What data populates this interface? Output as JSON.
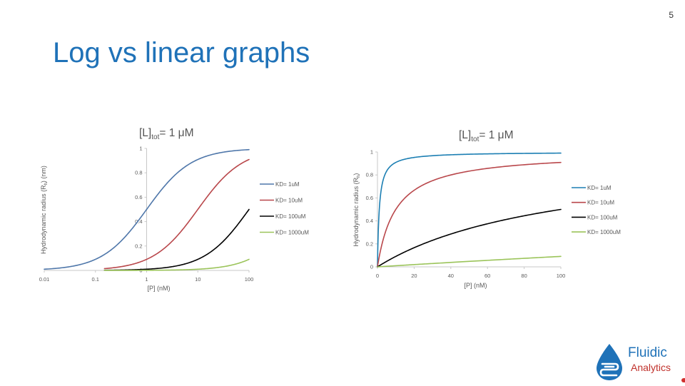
{
  "slide": {
    "number": "5",
    "title": "Log vs linear graphs",
    "logo": {
      "line1": "Fluidic",
      "line2": "Analytics"
    },
    "colors": {
      "title": "#1f72b8",
      "logo_blue": "#1f72b8",
      "logo_red": "#c0312b"
    }
  },
  "chart_data": [
    {
      "type": "line",
      "title": "[L]",
      "title_sub": "tot",
      "title_rest": "= 1 μM",
      "xlabel": "[P] (nM)",
      "ylabel": "Hydrodynamic radius (R",
      "ylabel_sub": "h",
      "ylabel_rest": ") (nm)",
      "xscale": "log",
      "xlim": [
        0.01,
        100
      ],
      "ylim": [
        0,
        1
      ],
      "xticks": [
        "0.01",
        "0.1",
        "1",
        "10",
        "100"
      ],
      "yticks": [
        "0",
        "0.2",
        "0.4",
        "0.6",
        "0.8",
        "1"
      ],
      "legend_position": "right",
      "series": [
        {
          "name": "KD= 1uM",
          "color": "#4f77aa",
          "kd": 1,
          "x": [
            0.01,
            0.02,
            0.05,
            0.1,
            0.2,
            0.5,
            1,
            2,
            5,
            10,
            20,
            50,
            100
          ],
          "y": [
            0.01,
            0.02,
            0.048,
            0.091,
            0.167,
            0.333,
            0.5,
            0.667,
            0.833,
            0.909,
            0.952,
            0.98,
            0.99
          ]
        },
        {
          "name": "KD= 10uM",
          "color": "#b9474b",
          "kd": 10,
          "x": [
            0.15,
            0.2,
            0.5,
            1,
            2,
            5,
            10,
            20,
            50,
            100
          ],
          "y": [
            0.015,
            0.02,
            0.048,
            0.091,
            0.167,
            0.333,
            0.5,
            0.667,
            0.833,
            0.909
          ]
        },
        {
          "name": "KD= 100uM",
          "color": "#000000",
          "kd": 100,
          "x": [
            0.15,
            0.2,
            0.5,
            1,
            2,
            5,
            10,
            20,
            50,
            100
          ],
          "y": [
            0.0015,
            0.002,
            0.005,
            0.01,
            0.02,
            0.048,
            0.091,
            0.167,
            0.333,
            0.5
          ]
        },
        {
          "name": "KD= 1000uM",
          "color": "#9bc45a",
          "kd": 1000,
          "x": [
            0.15,
            0.2,
            0.5,
            1,
            2,
            5,
            10,
            20,
            50,
            100
          ],
          "y": [
            0.0002,
            0.0002,
            0.0005,
            0.001,
            0.002,
            0.005,
            0.01,
            0.02,
            0.048,
            0.091
          ]
        }
      ]
    },
    {
      "type": "line",
      "title": "[L]",
      "title_sub": "tot",
      "title_rest": "= 1 μM",
      "xlabel": "[P] (nM)",
      "ylabel": "Hydrodynamic radius (R",
      "ylabel_sub": "h",
      "ylabel_rest": ")",
      "xscale": "linear",
      "xlim": [
        0,
        100
      ],
      "ylim": [
        0,
        1
      ],
      "xticks": [
        "0",
        "20",
        "40",
        "60",
        "80",
        "100"
      ],
      "yticks": [
        "0",
        "0.2",
        "0.4",
        "0.6",
        "0.8",
        "1"
      ],
      "legend_position": "right",
      "series": [
        {
          "name": "KD= 1uM",
          "color": "#1c7fb3",
          "kd": 1,
          "x": [
            0,
            0.5,
            1,
            2,
            3,
            5,
            10,
            20,
            40,
            60,
            80,
            100
          ],
          "y": [
            0,
            0.333,
            0.5,
            0.667,
            0.75,
            0.833,
            0.909,
            0.952,
            0.976,
            0.984,
            0.988,
            0.99
          ]
        },
        {
          "name": "KD= 10uM",
          "color": "#b9474b",
          "kd": 10,
          "x": [
            0,
            1,
            2,
            5,
            10,
            20,
            30,
            40,
            60,
            80,
            100
          ],
          "y": [
            0,
            0.091,
            0.167,
            0.333,
            0.5,
            0.667,
            0.75,
            0.8,
            0.857,
            0.889,
            0.909
          ]
        },
        {
          "name": "KD= 100uM",
          "color": "#000000",
          "kd": 100,
          "x": [
            0,
            5,
            10,
            20,
            30,
            40,
            50,
            60,
            70,
            80,
            90,
            100
          ],
          "y": [
            0,
            0.048,
            0.091,
            0.167,
            0.231,
            0.286,
            0.333,
            0.375,
            0.412,
            0.444,
            0.474,
            0.5
          ]
        },
        {
          "name": "KD= 1000uM",
          "color": "#9bc45a",
          "kd": 1000,
          "x": [
            0,
            20,
            40,
            60,
            80,
            100
          ],
          "y": [
            0,
            0.02,
            0.038,
            0.057,
            0.074,
            0.091
          ]
        }
      ]
    }
  ]
}
